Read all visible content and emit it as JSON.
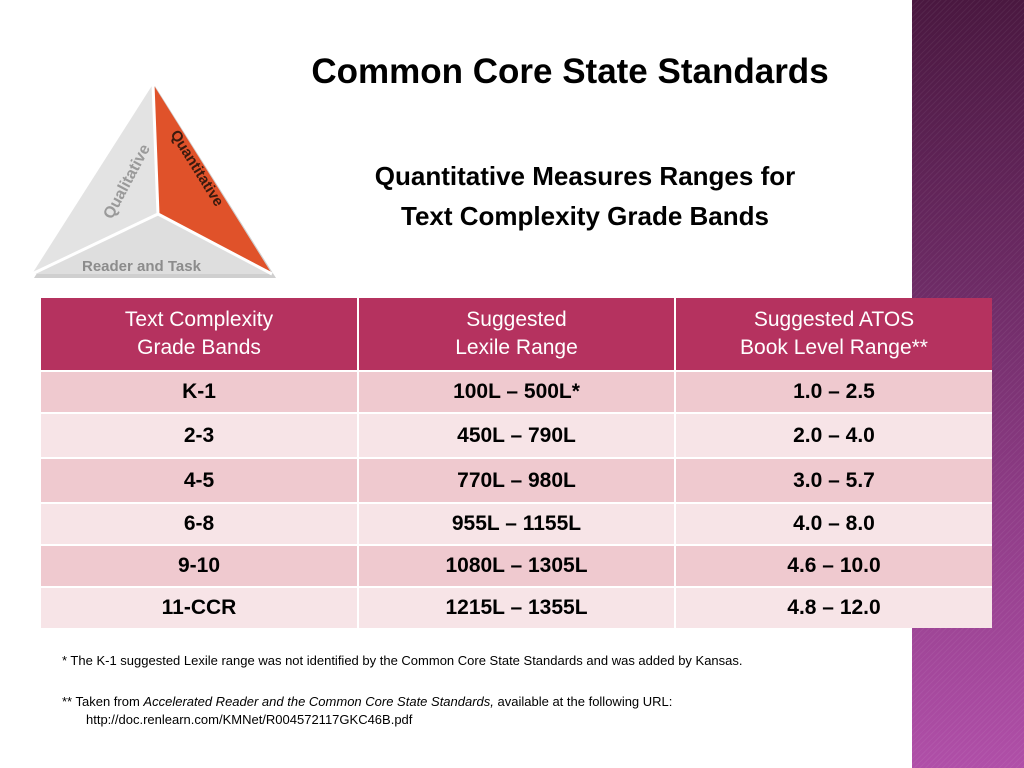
{
  "title": "Common Core State Standards",
  "subtitle": {
    "line1": "Quantitative Measures Ranges for",
    "line2": "Text Complexity Grade Bands"
  },
  "triangle": {
    "left_label": "Qualitative",
    "right_label": "Quantitative",
    "bottom_label": "Reader and Task",
    "colors": {
      "gray": "#d9d9d9",
      "orange": "#e0522a",
      "text_gray": "#8c8c8c"
    }
  },
  "table": {
    "headers": [
      {
        "line1": "Text Complexity",
        "line2": "Grade Bands"
      },
      {
        "line1": "Suggested",
        "line2": "Lexile Range"
      },
      {
        "line1": "Suggested ATOS",
        "line2": "Book Level Range**"
      }
    ],
    "rows": [
      {
        "band": "K-1",
        "lexile": "100L – 500L*",
        "atos": "1.0 – 2.5"
      },
      {
        "band": "2-3",
        "lexile": "450L – 790L",
        "atos": "2.0 – 4.0"
      },
      {
        "band": "4-5",
        "lexile": "770L – 980L",
        "atos": "3.0 – 5.7"
      },
      {
        "band": "6-8",
        "lexile": "955L – 1155L",
        "atos": "4.0 – 8.0"
      },
      {
        "band": "9-10",
        "lexile": "1080L – 1305L",
        "atos": "4.6 – 10.0"
      },
      {
        "band": "11-CCR",
        "lexile": "1215L – 1355L",
        "atos": "4.8 – 12.0"
      }
    ],
    "colors": {
      "header": "#b5325f",
      "row_odd": "#efc9cf",
      "row_even": "#f7e4e7"
    }
  },
  "notes": {
    "note1": "* The K-1 suggested Lexile range was not identified by the Common Core State Standards and was added by Kansas.",
    "note2_prefix": "** Taken from ",
    "note2_title": "Accelerated Reader and the Common Core State Standards,",
    "note2_suffix": " available at the following URL:",
    "note2_url": "http://doc.renlearn.com/KMNet/R004572117GKC46B.pdf"
  },
  "accent_colors": {
    "purple_band": "#6b2a63"
  }
}
